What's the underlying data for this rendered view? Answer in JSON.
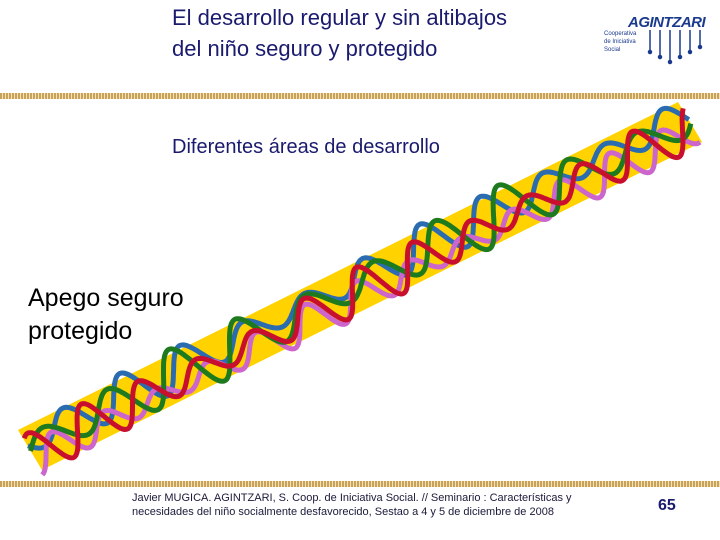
{
  "header": {
    "title": "El desarrollo regular y sin altibajos del niño seguro y protegido",
    "logo": {
      "name": "AGINTZARI",
      "tagline": "Cooperativa de Iniciativa Social"
    }
  },
  "subtitle": "Diferentes áreas de desarrollo",
  "side_label": "Apego seguro protegido",
  "footer": {
    "citation": "Javier MUGICA. AGINTZARI, S. Coop. de Iniciativa Social. // Seminario : Características y necesidades del niño socialmente desfavorecido, Sestao a 4 y 5 de diciembre de 2008",
    "page_number": "65"
  }
}
